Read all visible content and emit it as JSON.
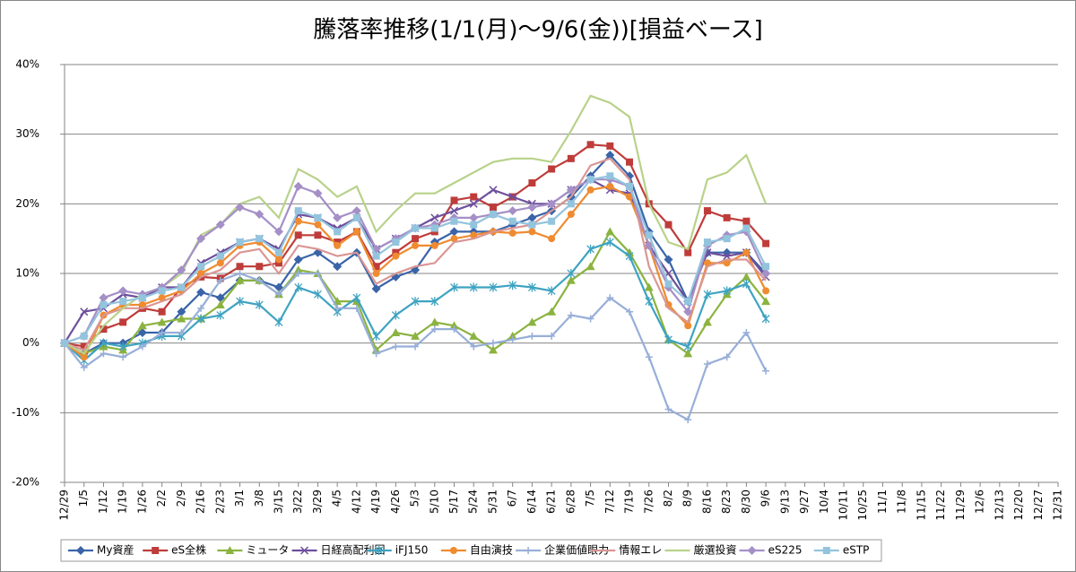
{
  "chart_data": {
    "type": "line",
    "title": "騰落率推移(1/1(月)～9/6(金))[損益ベース]",
    "categories": [
      "12/29",
      "1/5",
      "1/12",
      "1/19",
      "1/26",
      "2/2",
      "2/9",
      "2/16",
      "2/23",
      "3/1",
      "3/8",
      "3/15",
      "3/22",
      "3/29",
      "4/5",
      "4/12",
      "4/19",
      "4/26",
      "5/3",
      "5/10",
      "5/17",
      "5/24",
      "5/31",
      "6/7",
      "6/14",
      "6/21",
      "6/28",
      "7/5",
      "7/12",
      "7/19",
      "7/26",
      "8/2",
      "8/9",
      "8/16",
      "8/23",
      "8/30",
      "9/6",
      "9/13",
      "9/27",
      "10/4",
      "10/11",
      "10/25",
      "11/1",
      "11/8",
      "11/15",
      "11/22",
      "11/29",
      "12/6",
      "12/13",
      "12/20",
      "12/27",
      "12/31"
    ],
    "ylim": [
      -20,
      40
    ],
    "yticks": [
      {
        "value": -20,
        "label": "-20%"
      },
      {
        "value": -10,
        "label": "-10%"
      },
      {
        "value": 0,
        "label": "0%"
      },
      {
        "value": 10,
        "label": "10%"
      },
      {
        "value": 20,
        "label": "20%"
      },
      {
        "value": 30,
        "label": "30%"
      },
      {
        "value": 40,
        "label": "40%"
      }
    ],
    "grid": true,
    "legend": "bottom",
    "series": [
      {
        "name": "My資産",
        "color": "#3a64a8",
        "marker": "diamond",
        "values": [
          0,
          -1.5,
          0,
          0,
          1.5,
          1.5,
          4.5,
          7.3,
          6.5,
          9,
          9,
          8,
          12,
          13,
          11,
          13,
          7.8,
          9.5,
          10.5,
          14.5,
          16,
          16,
          16,
          17,
          18,
          19,
          21,
          24,
          27,
          24,
          16,
          12,
          6,
          13,
          13,
          13,
          10,
          null,
          null,
          null,
          null,
          null,
          null,
          null,
          null,
          null,
          null,
          null,
          null,
          null,
          null,
          null
        ]
      },
      {
        "name": "eS全株",
        "color": "#be3c3a",
        "marker": "square",
        "values": [
          0,
          -0.5,
          2,
          3,
          5,
          4.5,
          8,
          9.5,
          9.3,
          11,
          11,
          11.5,
          15.5,
          15.5,
          14.5,
          16,
          11,
          13,
          15,
          16,
          20.5,
          21,
          19.5,
          21,
          23,
          25,
          26.5,
          28.5,
          28.3,
          26,
          20,
          17,
          13,
          19,
          18,
          17.5,
          14.3,
          null,
          null,
          null,
          null,
          null,
          null,
          null,
          null,
          null,
          null,
          null,
          null,
          null,
          null,
          null
        ]
      },
      {
        "name": "ミュータ",
        "color": "#8bb33f",
        "marker": "triangle",
        "values": [
          0,
          -1.5,
          -0.5,
          -1,
          2.5,
          3,
          3.5,
          3.5,
          5.5,
          9,
          9,
          7,
          10.5,
          10,
          6,
          6,
          -1,
          1.5,
          1,
          3,
          2.5,
          1,
          -1,
          1,
          3,
          4.5,
          9,
          11,
          16,
          13,
          8,
          0.5,
          -1.5,
          3,
          7,
          9.5,
          6,
          null,
          null,
          null,
          null,
          null,
          null,
          null,
          null,
          null,
          null,
          null,
          null,
          null,
          null,
          null
        ]
      },
      {
        "name": "日経高配利回",
        "color": "#6e4f9c",
        "marker": "x",
        "values": [
          0,
          4.5,
          5,
          7,
          6.5,
          8,
          8,
          11.5,
          13,
          14.5,
          15,
          13.5,
          18.5,
          18,
          16.5,
          18,
          13.5,
          15,
          16.5,
          18,
          19,
          20,
          22,
          21,
          20,
          20,
          22,
          23.5,
          22,
          21.5,
          14,
          10,
          6,
          13,
          12.5,
          13,
          9.5,
          null,
          null,
          null,
          null,
          null,
          null,
          null,
          null,
          null,
          null,
          null,
          null,
          null,
          null,
          null
        ]
      },
      {
        "name": "iFJ150",
        "color": "#3ea3c1",
        "marker": "star",
        "values": [
          0,
          -2.5,
          0,
          -0.5,
          0,
          1,
          1,
          3.5,
          4,
          6,
          5.5,
          3,
          8,
          7,
          4.5,
          6.5,
          1,
          4,
          6,
          6,
          8,
          8,
          8,
          8.3,
          8,
          7.5,
          10,
          13.5,
          14.5,
          12.5,
          6,
          0.5,
          -0.5,
          7,
          7.5,
          8.5,
          3.5,
          null,
          null,
          null,
          null,
          null,
          null,
          null,
          null,
          null,
          null,
          null,
          null,
          null,
          null,
          null
        ]
      },
      {
        "name": "自由演技",
        "color": "#ef8b30",
        "marker": "circle",
        "values": [
          0,
          -2,
          4,
          5.5,
          5.5,
          6.5,
          7.5,
          10,
          11.5,
          14,
          14.5,
          12,
          17.5,
          17,
          14,
          16,
          10,
          12.5,
          14,
          14,
          15,
          15.5,
          16,
          15.8,
          16,
          15,
          18.5,
          22,
          22.5,
          21,
          14,
          5.5,
          2.5,
          11.5,
          11.5,
          13,
          7.5,
          null,
          null,
          null,
          null,
          null,
          null,
          null,
          null,
          null,
          null,
          null,
          null,
          null,
          null,
          null
        ]
      },
      {
        "name": "企業価値眼力",
        "color": "#97aed8",
        "marker": "plus",
        "values": [
          0,
          -3.5,
          -1.5,
          -2,
          -0.5,
          1.5,
          1.5,
          5,
          9,
          10,
          9,
          7,
          10,
          10,
          5,
          5,
          -1.5,
          -0.5,
          -0.5,
          2,
          2,
          -0.5,
          0,
          0.5,
          1,
          1,
          4,
          3.5,
          6.5,
          4.5,
          -2,
          -9.5,
          -11,
          -3,
          -2,
          1.5,
          -4,
          null,
          null,
          null,
          null,
          null,
          null,
          null,
          null,
          null,
          null,
          null,
          null,
          null,
          null,
          null
        ]
      },
      {
        "name": "情報エレ",
        "color": "#d99694",
        "marker": "none",
        "values": [
          0,
          -1,
          4,
          5,
          5,
          6,
          7,
          9.5,
          10.5,
          13,
          13.5,
          10,
          14,
          13.5,
          12.5,
          13,
          8.5,
          10,
          11,
          11.5,
          14.5,
          15,
          16,
          16.5,
          17,
          19,
          21,
          25.5,
          26.5,
          23.5,
          11,
          5,
          3,
          11,
          12,
          12,
          9,
          null,
          null,
          null,
          null,
          null,
          null,
          null,
          null,
          null,
          null,
          null,
          null,
          null,
          null,
          null
        ]
      },
      {
        "name": "厳選投資",
        "color": "#b8d28a",
        "marker": "none",
        "values": [
          0,
          -1.5,
          2.5,
          5,
          7,
          8,
          10,
          15.5,
          17,
          20,
          21,
          18,
          25,
          23.5,
          21,
          22.5,
          16,
          19,
          21.5,
          21.5,
          23,
          24.5,
          26,
          26.5,
          26.5,
          26,
          30.5,
          35.5,
          34.5,
          32.5,
          20,
          14.5,
          13.5,
          23.5,
          24.5,
          27,
          20,
          null,
          null,
          null,
          null,
          null,
          null,
          null,
          null,
          null,
          null,
          null,
          null,
          null,
          null,
          null
        ]
      },
      {
        "name": "eS225",
        "color": "#a58fc7",
        "marker": "diamond",
        "values": [
          0,
          1,
          6.5,
          7.5,
          7,
          8,
          10.5,
          15,
          17,
          19.5,
          18.5,
          16,
          22.5,
          21.5,
          18,
          19,
          13.5,
          15,
          16.5,
          17,
          18,
          18,
          18.5,
          19,
          19.5,
          20,
          22,
          23.5,
          23.5,
          22.5,
          14,
          8,
          4.5,
          14,
          15.5,
          16,
          10,
          null,
          null,
          null,
          null,
          null,
          null,
          null,
          null,
          null,
          null,
          null,
          null,
          null,
          null,
          null
        ]
      },
      {
        "name": "eSTP",
        "color": "#93c4dd",
        "marker": "square",
        "values": [
          0,
          1,
          5.5,
          6,
          6.5,
          7.5,
          8,
          11,
          12.5,
          14.5,
          15,
          13,
          19,
          18,
          16,
          18,
          12.5,
          14.5,
          16.5,
          16.5,
          17.5,
          17,
          18.5,
          17.5,
          17,
          17.5,
          20,
          23.5,
          24,
          22.5,
          15.5,
          8.5,
          6,
          14.5,
          15,
          16.5,
          11,
          null,
          null,
          null,
          null,
          null,
          null,
          null,
          null,
          null,
          null,
          null,
          null,
          null,
          null,
          null
        ]
      }
    ]
  }
}
